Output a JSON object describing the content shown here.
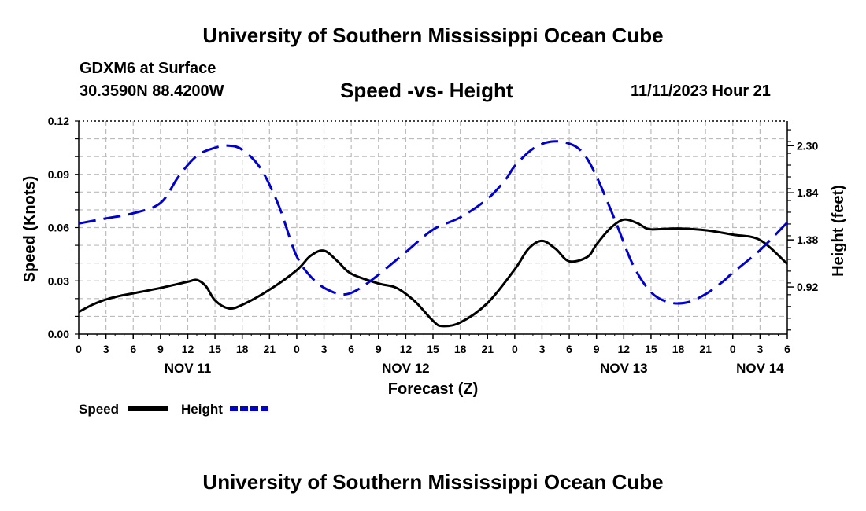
{
  "header": {
    "title_top": "University of Southern Mississippi Ocean Cube",
    "title_bottom": "University of Southern Mississippi Ocean Cube",
    "station": "GDXM6 at Surface",
    "coords": "30.3590N  88.4200W",
    "chart_title": "Speed -vs- Height",
    "datetime": "11/11/2023 Hour 21"
  },
  "colors": {
    "speed": "#000000",
    "height": "#0000cc",
    "grid": "#bbbbbb"
  },
  "chart_data": {
    "type": "line",
    "title": "Speed -vs- Height",
    "xlabel": "Forecast (Z)",
    "ylabel": "Speed (Knots)",
    "y2label": "Height (feet)",
    "x_unit": "hours from NOV 11 00Z",
    "xlim": [
      0,
      78
    ],
    "ylim": [
      0,
      0.12
    ],
    "y2lim": [
      0.46,
      2.54
    ],
    "grid": true,
    "x_ticks": [
      0,
      3,
      6,
      9,
      12,
      15,
      18,
      21,
      24,
      27,
      30,
      33,
      36,
      39,
      42,
      45,
      48,
      51,
      54,
      57,
      60,
      63,
      66,
      69,
      72,
      75,
      78
    ],
    "x_tick_labels": [
      "0",
      "3",
      "6",
      "9",
      "12",
      "15",
      "18",
      "21",
      "0",
      "3",
      "6",
      "9",
      "12",
      "15",
      "18",
      "21",
      "0",
      "3",
      "6",
      "9",
      "12",
      "15",
      "18",
      "21",
      "0",
      "3",
      "6"
    ],
    "day_labels": [
      {
        "x": 12,
        "label": "NOV 11"
      },
      {
        "x": 36,
        "label": "NOV 12"
      },
      {
        "x": 60,
        "label": "NOV 13"
      },
      {
        "x": 75,
        "label": "NOV 14"
      }
    ],
    "y_ticks": [
      0,
      0.03,
      0.06,
      0.09,
      0.12
    ],
    "y_tick_labels": [
      "0.00",
      "0.03",
      "0.06",
      "0.09",
      "0.12"
    ],
    "y2_ticks": [
      0.92,
      1.38,
      1.84,
      2.3
    ],
    "y2_tick_labels": [
      "0.92",
      "1.38",
      "1.84",
      "2.30"
    ],
    "legend": [
      {
        "name": "Speed",
        "style": "solid"
      },
      {
        "name": "Height",
        "style": "dashed"
      }
    ],
    "series": [
      {
        "name": "Speed",
        "axis": "left",
        "style": "solid",
        "x": [
          0,
          1.5,
          3,
          4.5,
          6,
          9,
          12,
          13,
          14,
          15,
          16.5,
          18,
          21,
          24,
          25.5,
          27,
          28.5,
          30,
          33,
          35,
          37,
          39,
          40,
          42,
          45,
          48,
          49.5,
          51,
          52.5,
          54,
          56,
          57,
          58.5,
          60,
          61.5,
          62,
          63,
          66,
          69,
          72,
          75,
          78
        ],
        "y": [
          0.0125,
          0.0165,
          0.0195,
          0.0215,
          0.023,
          0.026,
          0.0295,
          0.0305,
          0.027,
          0.019,
          0.0145,
          0.0165,
          0.025,
          0.036,
          0.044,
          0.047,
          0.041,
          0.034,
          0.0285,
          0.026,
          0.0185,
          0.0075,
          0.0045,
          0.0065,
          0.0175,
          0.0365,
          0.048,
          0.0525,
          0.048,
          0.041,
          0.0435,
          0.0505,
          0.0595,
          0.0645,
          0.0625,
          0.061,
          0.059,
          0.0595,
          0.0585,
          0.056,
          0.053,
          0.0395
        ]
      },
      {
        "name": "Height",
        "axis": "right",
        "style": "dashed",
        "x": [
          0,
          3,
          6,
          9,
          11,
          13,
          15,
          16.5,
          18,
          20,
          22,
          24,
          26,
          28,
          29.5,
          31,
          33,
          36,
          39,
          42,
          45,
          47,
          48,
          50,
          52,
          54,
          55.5,
          57,
          59,
          61,
          63,
          65,
          67,
          69,
          71,
          72,
          75,
          78
        ],
        "y": [
          1.54,
          1.59,
          1.64,
          1.74,
          2.0,
          2.2,
          2.28,
          2.3,
          2.26,
          2.08,
          1.72,
          1.22,
          0.98,
          0.87,
          0.85,
          0.91,
          1.04,
          1.26,
          1.48,
          1.6,
          1.78,
          1.97,
          2.1,
          2.27,
          2.34,
          2.32,
          2.23,
          2.0,
          1.58,
          1.14,
          0.87,
          0.77,
          0.77,
          0.85,
          0.98,
          1.06,
          1.28,
          1.55
        ]
      }
    ]
  }
}
